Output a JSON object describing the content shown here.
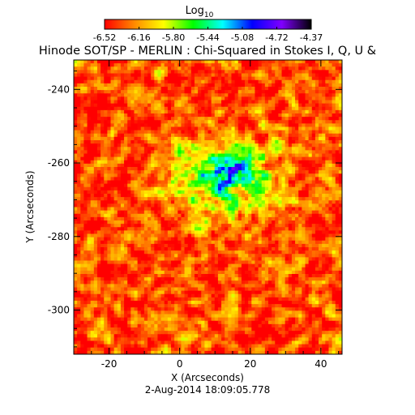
{
  "title": "Hinode SOT/SP - MERLIN : Chi-Squared in Stokes I, Q, U &",
  "timestamp": "2-Aug-2014 18:09:05.778",
  "colorbar": {
    "label_base": "Log",
    "label_sub": "10",
    "min": -6.52,
    "max": -4.37,
    "tick_labels": [
      "-6.52",
      "-6.16",
      "-5.80",
      "-5.44",
      "-5.08",
      "-4.72",
      "-4.37"
    ],
    "colors": [
      "#ff0000",
      "#ff8800",
      "#ffff00",
      "#00ff00",
      "#00ffff",
      "#0000ff",
      "#8000ff",
      "#000000"
    ]
  },
  "chart_data": {
    "type": "heatmap",
    "title": "Hinode SOT/SP - MERLIN : Chi-Squared in Stokes I, Q, U &",
    "xlabel": "X (Arcseconds)",
    "ylabel": "Y (Arcseconds)",
    "xlim": [
      -30,
      46
    ],
    "ylim": [
      -312,
      -232
    ],
    "x_ticks": [
      -20,
      0,
      20,
      40
    ],
    "y_ticks": [
      -240,
      -260,
      -280,
      -300
    ],
    "x_tick_labels": [
      "-20",
      "0",
      "20",
      "40"
    ],
    "y_tick_labels": [
      "-240",
      "-260",
      "-280",
      "-300"
    ],
    "value_range": [
      -6.52,
      -4.37
    ],
    "background_level": -6.35,
    "features": [
      {
        "type": "sunspot",
        "center_x": 12,
        "center_y": -264,
        "peak": -5.3
      },
      {
        "type": "core",
        "center_x": 16,
        "center_y": -262,
        "peak": -4.7
      }
    ]
  }
}
